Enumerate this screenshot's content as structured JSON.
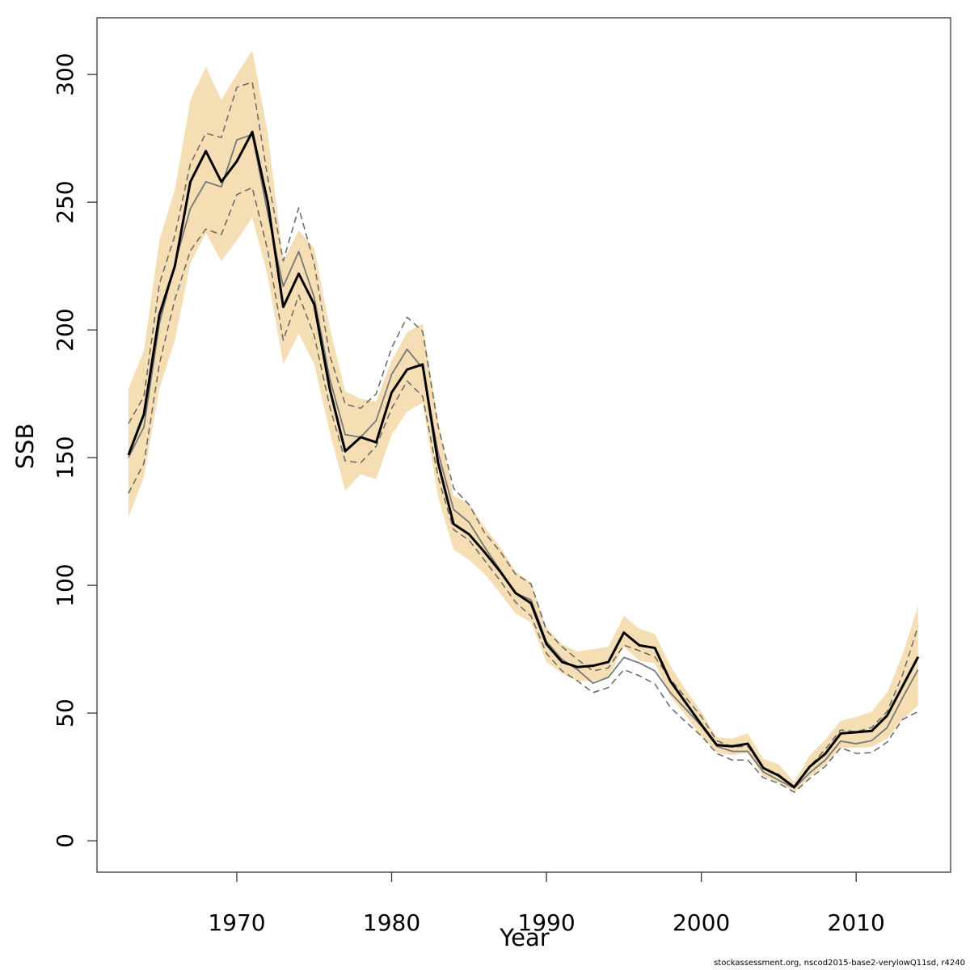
{
  "chart_data": {
    "type": "line",
    "xlabel": "Year",
    "ylabel": "SSB",
    "footnote": "stockassessment.org, nscod2015-base2-verylowQ11sd, r4240",
    "x": [
      1963,
      1964,
      1965,
      1966,
      1967,
      1968,
      1969,
      1970,
      1971,
      1972,
      1973,
      1974,
      1975,
      1976,
      1977,
      1978,
      1979,
      1980,
      1981,
      1982,
      1983,
      1984,
      1985,
      1986,
      1987,
      1988,
      1989,
      1990,
      1991,
      1992,
      1993,
      1994,
      1995,
      1996,
      1997,
      1998,
      1999,
      2000,
      2001,
      2002,
      2003,
      2004,
      2005,
      2006,
      2007,
      2008,
      2009,
      2010,
      2011,
      2012,
      2013,
      2014
    ],
    "band": {
      "color": "#f5deb3",
      "upper": [
        177,
        192,
        235,
        255,
        290,
        303,
        290,
        300,
        309.5,
        277,
        227,
        239,
        232,
        201,
        176,
        173,
        172,
        188,
        199,
        202.5,
        164.5,
        135,
        132,
        123,
        115,
        105.5,
        101,
        83.5,
        77,
        74,
        75,
        76,
        88,
        83,
        81,
        68.5,
        59,
        50.5,
        40.5,
        40,
        42,
        32,
        30,
        23,
        33.5,
        39.5,
        47,
        48.5,
        50.5,
        58,
        73,
        92
      ],
      "lower": [
        126.5,
        142.5,
        177,
        196,
        226,
        238,
        227,
        235,
        244,
        221,
        186.5,
        198.5,
        186.5,
        160,
        137,
        143.5,
        141.5,
        159,
        168,
        171.5,
        134.5,
        114,
        110,
        104.5,
        97,
        89,
        85.5,
        70,
        65.5,
        62.5,
        62.5,
        64,
        76,
        70.5,
        69.5,
        56.5,
        49,
        41,
        34.5,
        33.5,
        34.5,
        25.3,
        22.8,
        19,
        25,
        29.7,
        36.4,
        36.4,
        36.7,
        40,
        47.5,
        53
      ]
    },
    "series": [
      {
        "color": "#666666",
        "width": 1.5,
        "dash": true,
        "values": [
          163.3,
          174,
          218,
          237,
          265,
          277,
          275.3,
          295,
          297,
          259.5,
          227,
          247.8,
          226,
          190,
          171,
          169.3,
          175,
          193,
          205,
          199.4,
          162.3,
          138,
          131.6,
          120.6,
          113.3,
          104.4,
          100.6,
          82.3,
          76,
          71,
          66.5,
          67.7,
          76.6,
          74.4,
          72,
          63.3,
          56,
          48.7,
          39.2,
          36.7,
          37,
          28.5,
          26,
          20.6,
          29.1,
          35.8,
          43.4,
          42.7,
          44.3,
          50.6,
          65,
          84
        ]
      },
      {
        "color": "#666666",
        "width": 1.5,
        "dash": true,
        "values": [
          136,
          147.8,
          186.7,
          212,
          231,
          239.5,
          237.3,
          253,
          255.7,
          231,
          196,
          213.6,
          197.8,
          170,
          148.7,
          148,
          154.4,
          169.3,
          180,
          174,
          142.4,
          121.8,
          117.7,
          109.8,
          101.9,
          93.4,
          88,
          73.4,
          66.5,
          62.6,
          58,
          60,
          67,
          64.6,
          61.4,
          52.2,
          46.5,
          41.1,
          34.2,
          31.6,
          31.6,
          24.7,
          22.5,
          19,
          24.4,
          29.1,
          36.4,
          34.2,
          34.5,
          38.6,
          47.5,
          50.6
        ]
      },
      {
        "color": "#777777",
        "width": 1.8,
        "dash": false,
        "values": [
          150,
          162,
          202.5,
          226,
          247.5,
          258,
          256,
          274.4,
          276.5,
          245.5,
          217,
          230.7,
          212.7,
          181,
          159,
          158,
          164.5,
          182.6,
          192.4,
          185,
          152,
          129.7,
          124.7,
          115,
          106,
          97,
          94.3,
          78,
          71,
          67,
          61.7,
          64,
          71.8,
          69.6,
          66.5,
          58,
          51.5,
          45,
          37,
          35,
          35,
          27,
          23.7,
          20.6,
          26.6,
          31.6,
          39,
          38,
          39.2,
          44.3,
          56,
          67
        ]
      },
      {
        "color": "#000000",
        "width": 3,
        "dash": false,
        "values": [
          151,
          167,
          206,
          225,
          258,
          270,
          258,
          266,
          277.5,
          250,
          209,
          222,
          210,
          177,
          152.5,
          158,
          156,
          175.5,
          184.5,
          186.5,
          148,
          124,
          120,
          113,
          105.5,
          97,
          93,
          77,
          70,
          68,
          68.5,
          70,
          81.5,
          76.5,
          75.5,
          62.5,
          54,
          45.5,
          37.5,
          37,
          38,
          28.5,
          25.5,
          21,
          29,
          34,
          42,
          42.5,
          43,
          49,
          60.5,
          72
        ]
      }
    ],
    "xlim": [
      1960.97,
      2016.1
    ],
    "ylim": [
      -12.3,
      322.2
    ],
    "xticks": [
      1970,
      1980,
      1990,
      2000,
      2010
    ],
    "yticks": [
      0,
      50,
      100,
      150,
      200,
      250,
      300
    ]
  }
}
